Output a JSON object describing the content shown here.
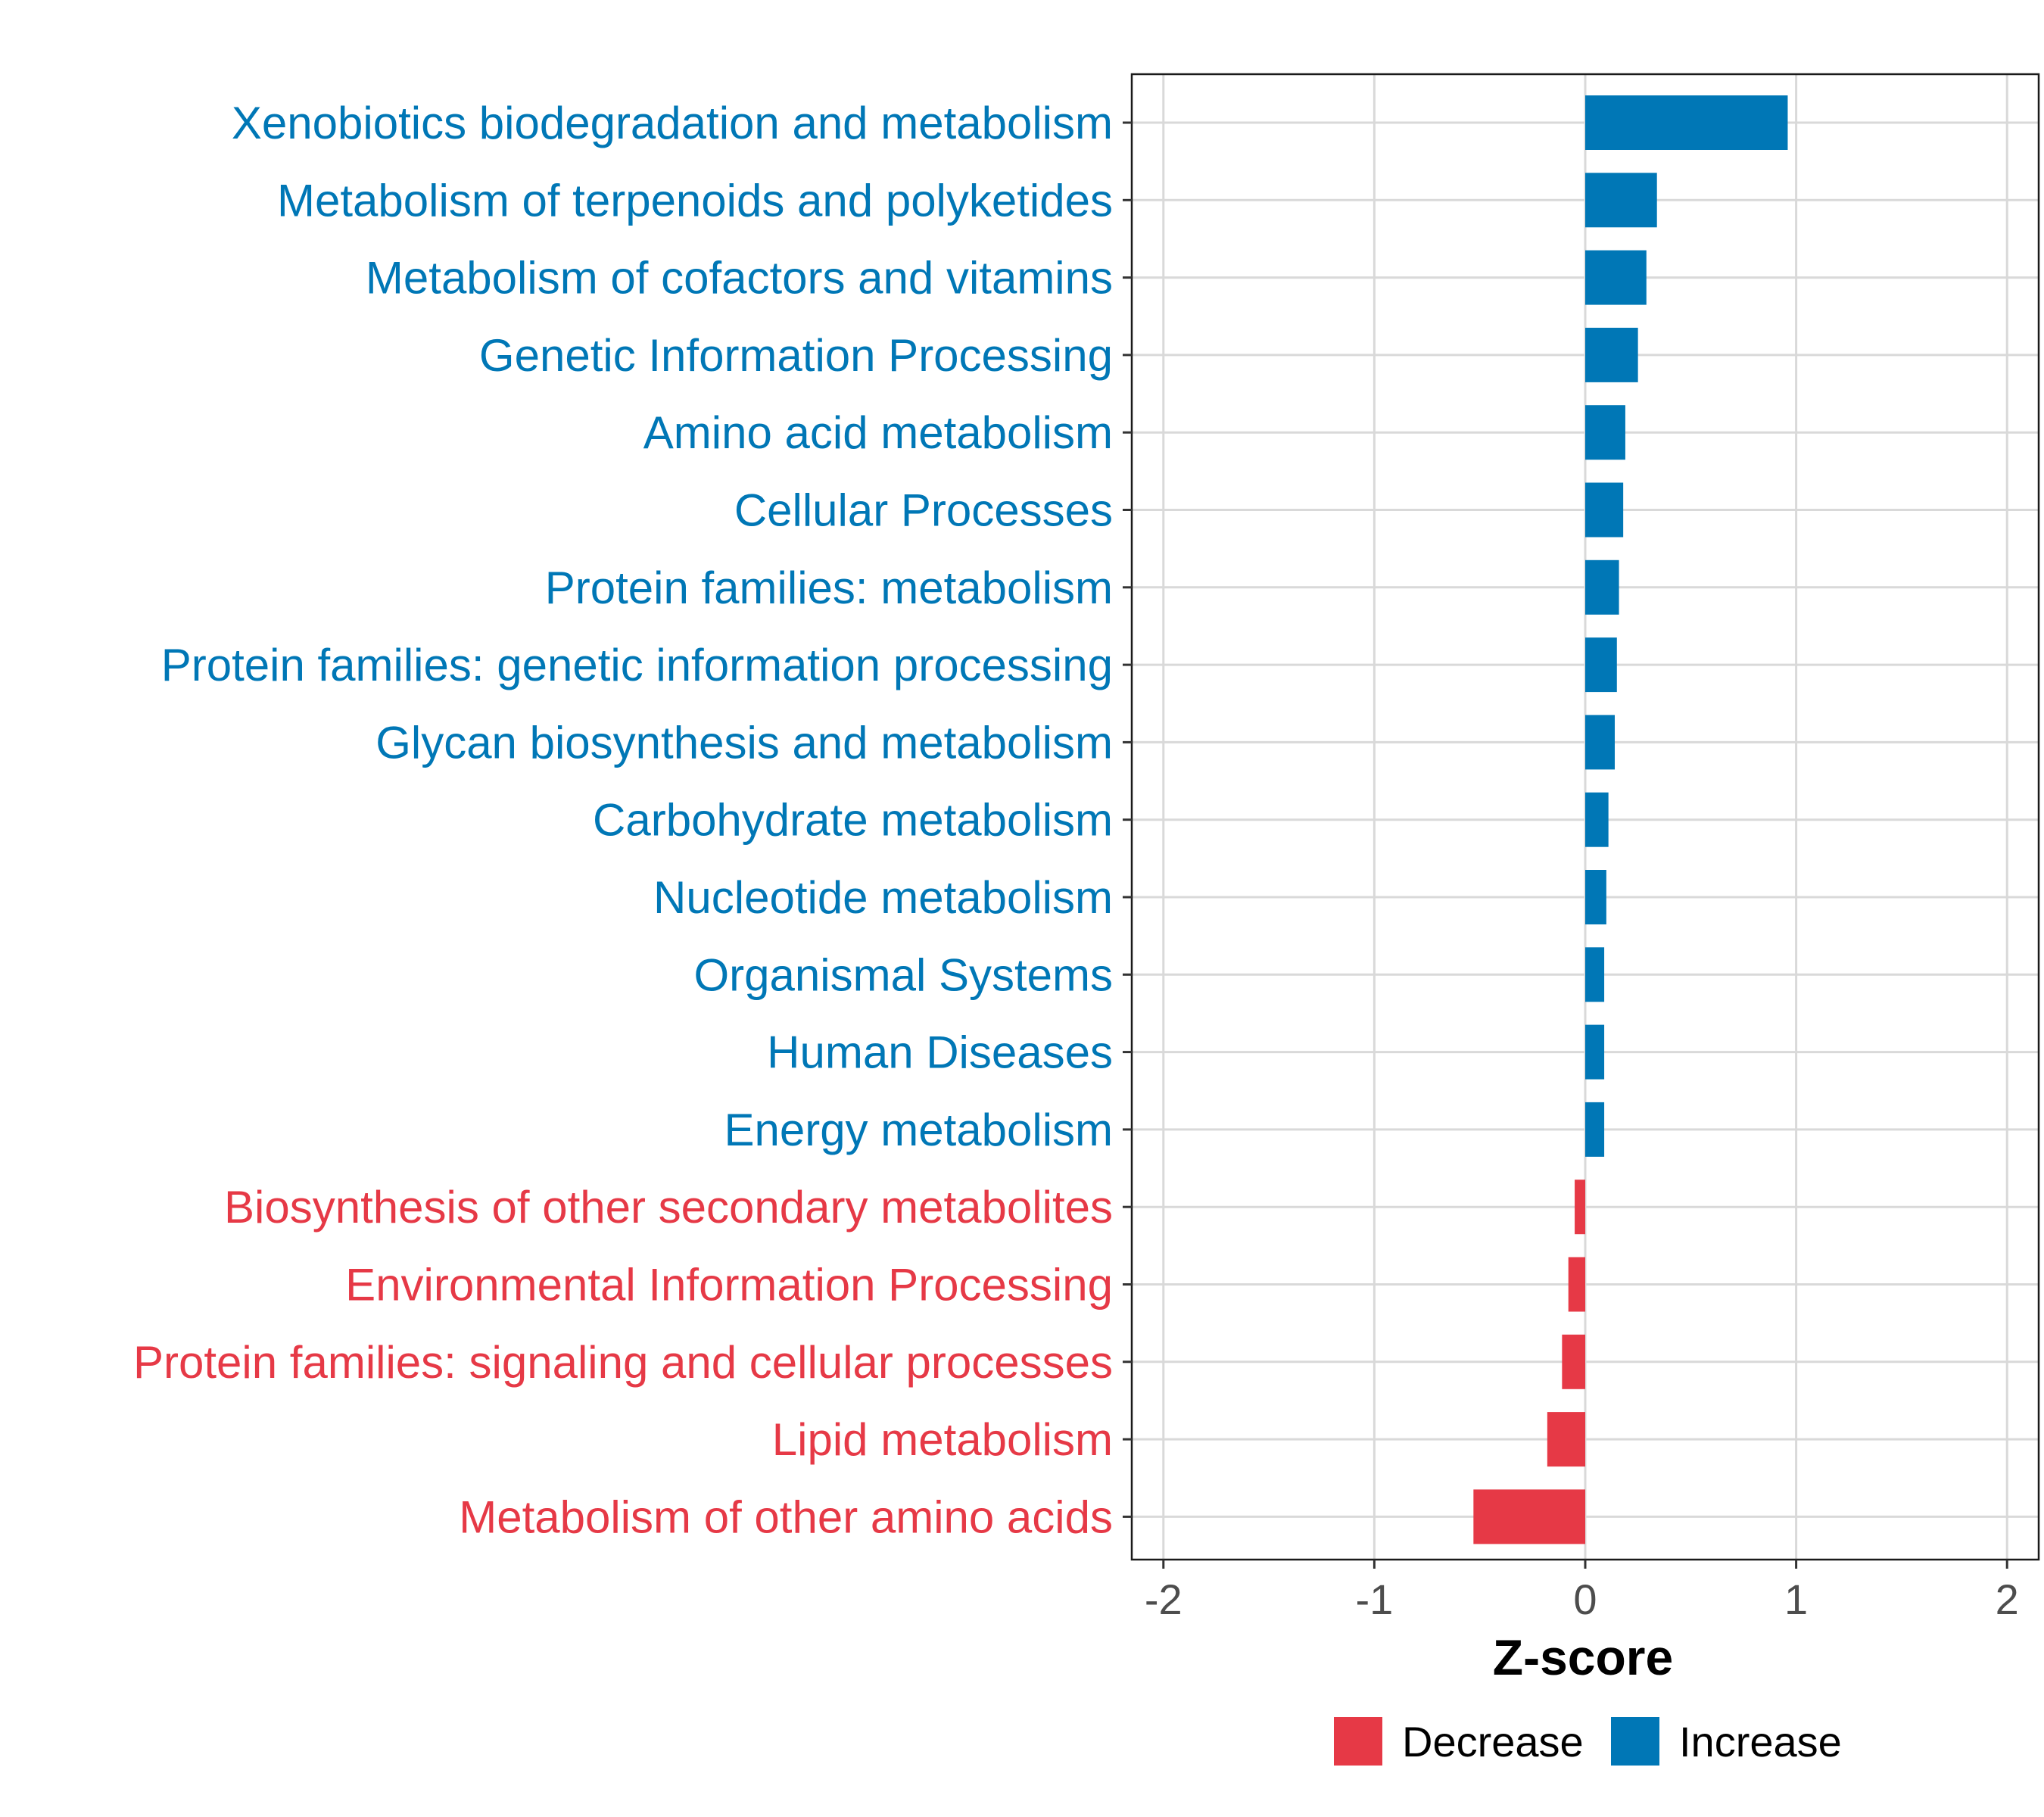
{
  "chart_data": {
    "type": "bar",
    "orientation": "horizontal",
    "title": "",
    "xlabel": "Z-score",
    "ylabel": "",
    "xlim": [
      -2.15,
      2.15
    ],
    "xticks": [
      -2,
      -1,
      0,
      1,
      2
    ],
    "xtick_labels": [
      "-2",
      "-1",
      "0",
      "1",
      "2"
    ],
    "grid": true,
    "legend_position": "bottom",
    "colors": {
      "Decrease": "#e63946",
      "Increase": "#0077b6"
    },
    "legend": [
      {
        "label": "Decrease",
        "color": "#e63946"
      },
      {
        "label": "Increase",
        "color": "#0077b6"
      }
    ],
    "categories": [
      "Xenobiotics biodegradation and metabolism",
      "Metabolism of terpenoids and polyketides",
      "Metabolism of cofactors and vitamins",
      "Genetic Information Processing",
      "Amino acid metabolism",
      "Cellular Processes",
      "Protein families: metabolism",
      "Protein families: genetic information processing",
      "Glycan biosynthesis and metabolism",
      "Carbohydrate metabolism",
      "Nucleotide metabolism",
      "Organismal Systems",
      "Human Diseases",
      "Energy metabolism",
      "Biosynthesis of other secondary metabolites",
      "Environmental Information Processing",
      "Protein families: signaling and cellular processes",
      "Lipid metabolism",
      "Metabolism of other amino acids"
    ],
    "values": [
      0.96,
      0.34,
      0.29,
      0.25,
      0.19,
      0.18,
      0.16,
      0.15,
      0.14,
      0.11,
      0.1,
      0.09,
      0.09,
      0.09,
      -0.05,
      -0.08,
      -0.11,
      -0.18,
      -0.53
    ],
    "groups": [
      "Increase",
      "Increase",
      "Increase",
      "Increase",
      "Increase",
      "Increase",
      "Increase",
      "Increase",
      "Increase",
      "Increase",
      "Increase",
      "Increase",
      "Increase",
      "Increase",
      "Decrease",
      "Decrease",
      "Decrease",
      "Decrease",
      "Decrease"
    ]
  }
}
